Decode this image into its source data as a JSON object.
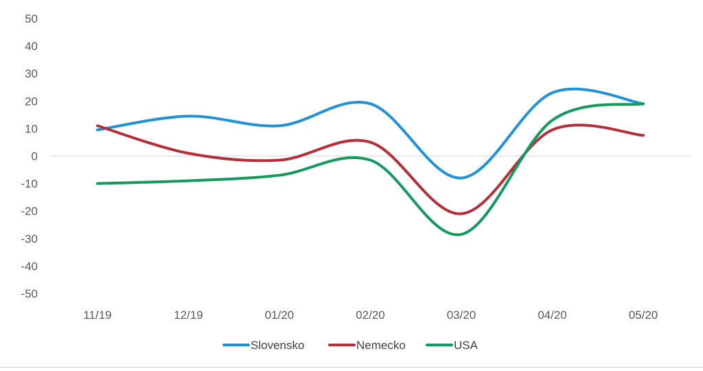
{
  "chart_data": {
    "type": "line",
    "categories": [
      "11/19",
      "12/19",
      "01/20",
      "02/20",
      "03/20",
      "04/20",
      "05/20"
    ],
    "series": [
      {
        "name": "Slovensko",
        "color": "#1F93D6",
        "values": [
          9.5,
          14.5,
          11,
          19,
          -8,
          23,
          19
        ]
      },
      {
        "name": "Nemecko",
        "color": "#B52E39",
        "values": [
          11,
          1,
          -1.5,
          5,
          -21,
          9.5,
          7.5
        ]
      },
      {
        "name": "USA",
        "color": "#139A5F",
        "values": [
          -10,
          -9,
          -7,
          -1.5,
          -28.5,
          13,
          19
        ]
      }
    ],
    "ylim": [
      -50,
      50
    ],
    "yticks": [
      50,
      40,
      30,
      20,
      10,
      0,
      -10,
      -20,
      -30,
      -40,
      -50
    ],
    "smooth": true,
    "grid": false,
    "zero_line": true,
    "legend_position": "bottom-center"
  }
}
